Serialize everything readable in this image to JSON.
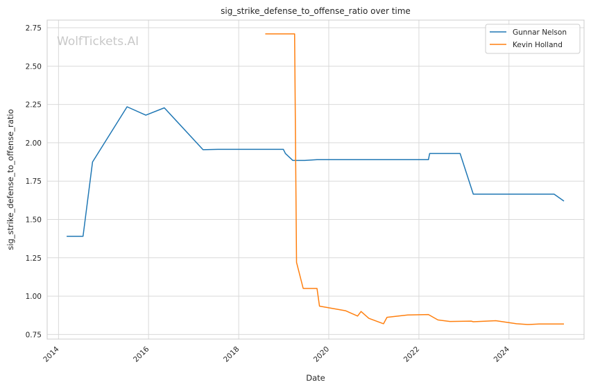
{
  "chart_data": {
    "type": "line",
    "title": "sig_strike_defense_to_offense_ratio over time",
    "xlabel": "Date",
    "ylabel": "sig_strike_defense_to_offense_ratio",
    "watermark": "WolfTickets.AI",
    "x_ticks": [
      "2014",
      "2016",
      "2018",
      "2020",
      "2022",
      "2024"
    ],
    "y_ticks": [
      "0.75",
      "1.00",
      "1.25",
      "1.50",
      "1.75",
      "2.00",
      "2.25",
      "2.50",
      "2.75"
    ],
    "xlim": [
      "2013-10-01",
      "2025-09-01"
    ],
    "ylim": [
      0.72,
      2.8
    ],
    "grid": true,
    "legend_position": "top-right",
    "series": [
      {
        "name": "Gunnar Nelson",
        "color": "#1f77b4",
        "points": [
          [
            "2014-03-08",
            1.39
          ],
          [
            "2014-07-19",
            1.39
          ],
          [
            "2014-10-04",
            1.875
          ],
          [
            "2015-07-11",
            2.235
          ],
          [
            "2015-12-10",
            2.18
          ],
          [
            "2016-05-08",
            2.228
          ],
          [
            "2017-03-18",
            1.955
          ],
          [
            "2017-07-16",
            1.957
          ],
          [
            "2018-12-29",
            1.957
          ],
          [
            "2019-01-15",
            1.93
          ],
          [
            "2019-03-16",
            1.885
          ],
          [
            "2019-06-20",
            1.885
          ],
          [
            "2019-09-28",
            1.89
          ],
          [
            "2022-03-19",
            1.89
          ],
          [
            "2022-03-29",
            1.93
          ],
          [
            "2022-12-01",
            1.93
          ],
          [
            "2023-03-18",
            1.665
          ],
          [
            "2025-01-01",
            1.665
          ],
          [
            "2025-03-22",
            1.62
          ]
        ]
      },
      {
        "name": "Kevin Holland",
        "color": "#ff7f0e",
        "points": [
          [
            "2018-08-04",
            2.71
          ],
          [
            "2019-03-30",
            2.71
          ],
          [
            "2019-04-15",
            1.22
          ],
          [
            "2019-06-08",
            1.05
          ],
          [
            "2019-09-28",
            1.05
          ],
          [
            "2019-10-18",
            0.935
          ],
          [
            "2020-05-16",
            0.905
          ],
          [
            "2020-08-22",
            0.87
          ],
          [
            "2020-09-19",
            0.9
          ],
          [
            "2020-11-21",
            0.855
          ],
          [
            "2021-03-20",
            0.82
          ],
          [
            "2021-04-17",
            0.862
          ],
          [
            "2021-10-02",
            0.877
          ],
          [
            "2022-03-19",
            0.88
          ],
          [
            "2022-06-04",
            0.845
          ],
          [
            "2022-09-10",
            0.835
          ],
          [
            "2023-03-01",
            0.837
          ],
          [
            "2023-03-18",
            0.833
          ],
          [
            "2023-09-16",
            0.84
          ],
          [
            "2024-03-02",
            0.82
          ],
          [
            "2024-06-01",
            0.815
          ],
          [
            "2024-09-01",
            0.818
          ],
          [
            "2025-03-22",
            0.818
          ]
        ]
      }
    ]
  }
}
